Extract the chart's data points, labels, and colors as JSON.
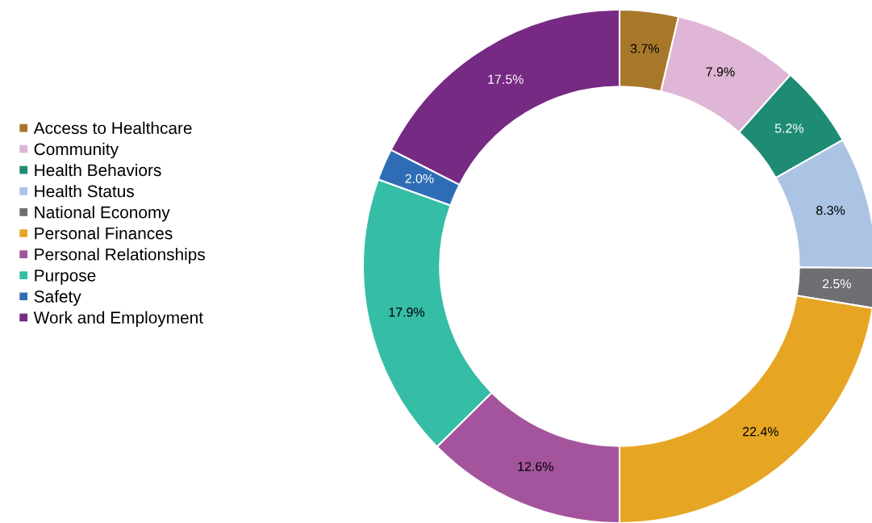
{
  "chart_data": {
    "type": "donut",
    "categories": [
      "Access to Healthcare",
      "Community",
      "Health Behaviors",
      "Health Status",
      "National Economy",
      "Personal Finances",
      "Personal Relationships",
      "Purpose",
      "Safety",
      "Work and Employment"
    ],
    "values": [
      3.7,
      7.9,
      5.2,
      8.3,
      2.5,
      22.4,
      12.6,
      17.9,
      2.0,
      17.5
    ],
    "value_labels": [
      "3.7%",
      "7.9%",
      "5.2%",
      "8.3%",
      "2.5%",
      "22.4%",
      "12.6%",
      "17.9%",
      "2.0%",
      "17.5%"
    ],
    "colors": [
      "#a8782a",
      "#dfb6d6",
      "#1e8c74",
      "#abc4e4",
      "#6e6e73",
      "#e6a623",
      "#a4549c",
      "#35bda5",
      "#2e6db5",
      "#762a83"
    ],
    "legend": "left"
  }
}
